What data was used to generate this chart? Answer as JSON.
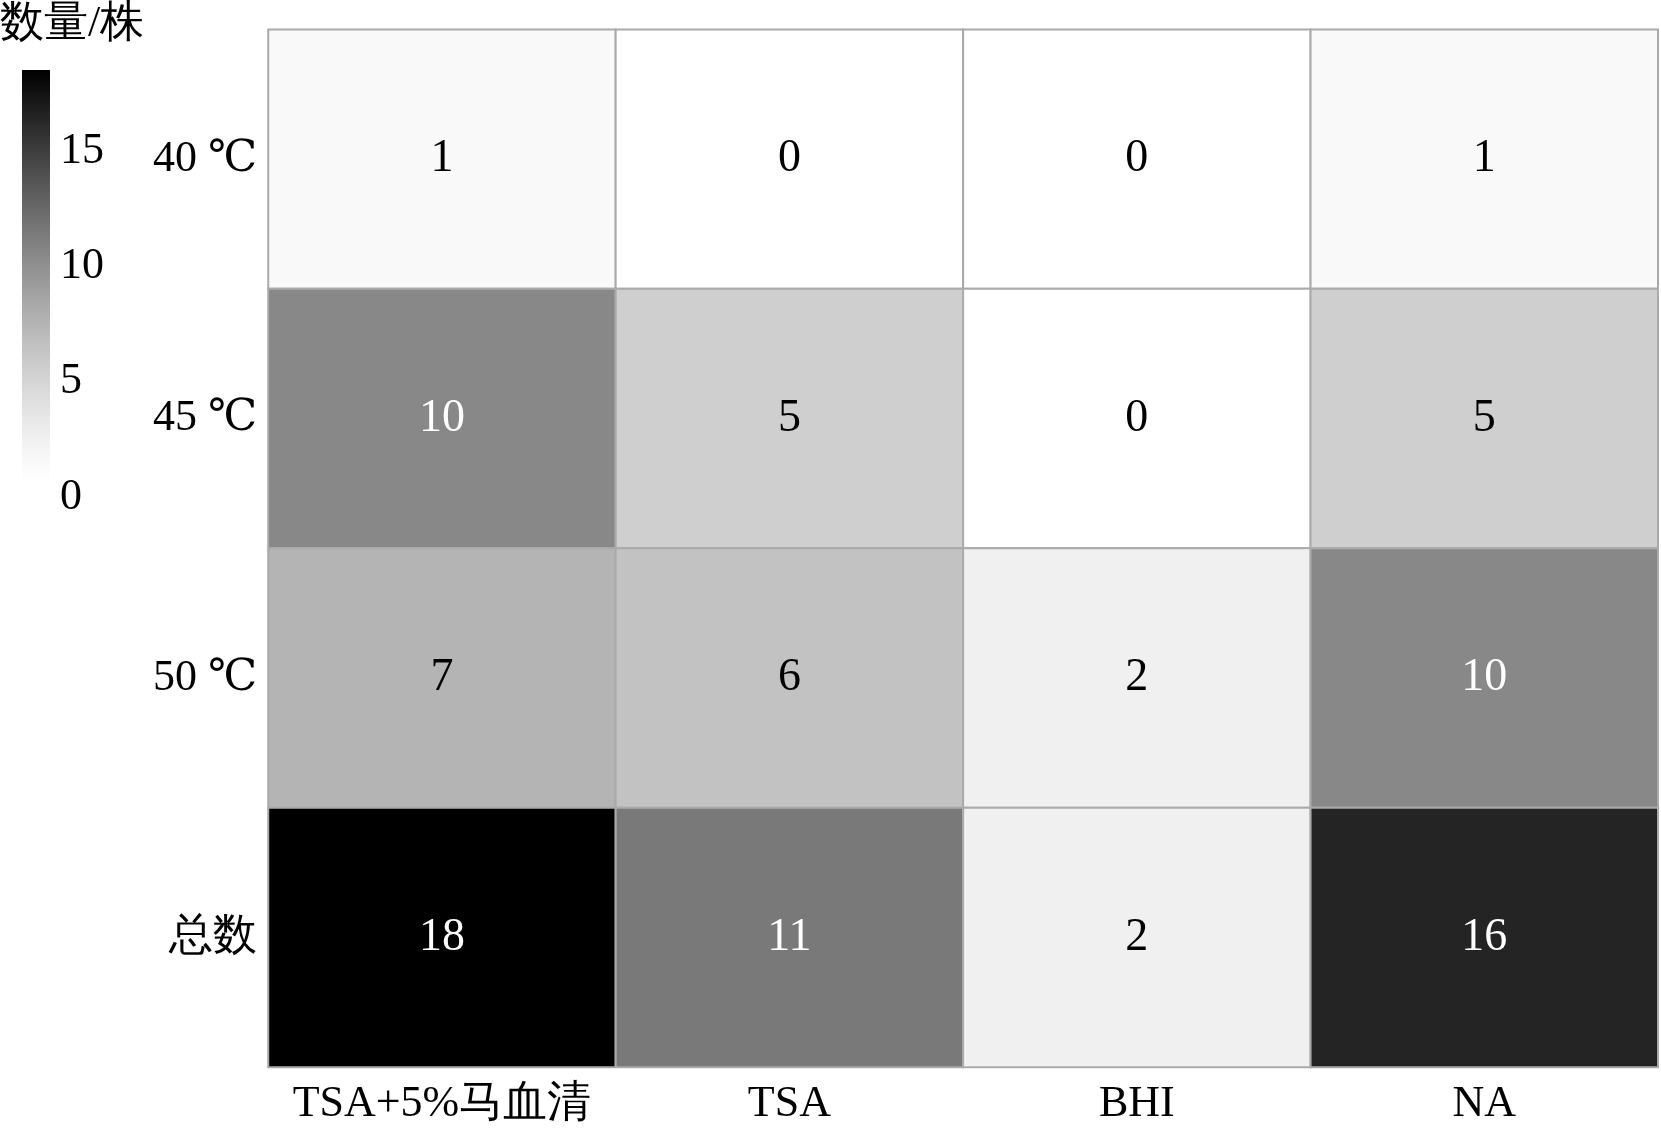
{
  "chart_data": {
    "type": "heatmap",
    "categories": [
      "TSA+5%马血清",
      "TSA",
      "BHI",
      "NA"
    ],
    "y_categories": [
      "40 ℃",
      "45 ℃",
      "50 ℃",
      "总数"
    ],
    "cells": [
      [
        1,
        0,
        0,
        1
      ],
      [
        10,
        5,
        0,
        5
      ],
      [
        7,
        6,
        2,
        10
      ],
      [
        18,
        11,
        2,
        16
      ]
    ],
    "clabel": "数量/株",
    "clim": [
      0,
      18
    ],
    "cticks": [
      0,
      5,
      10,
      15
    ],
    "data_labels": true
  }
}
